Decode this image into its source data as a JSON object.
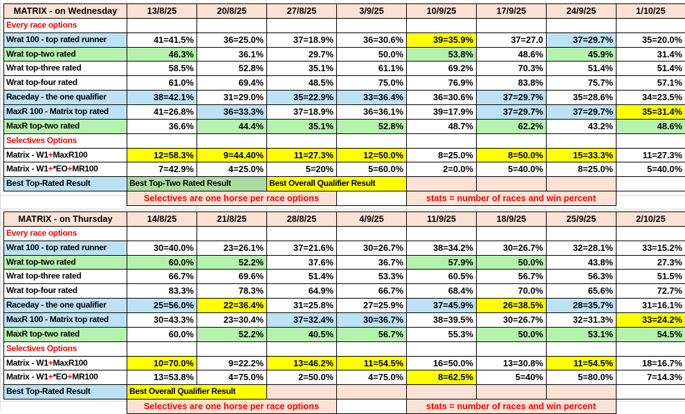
{
  "colors": {
    "peach": "#FBE2D5",
    "yellow": "#FFFF00",
    "green": "#B6F2AE",
    "merged_green": "#ABDCA2",
    "blue": "#BDE2F4",
    "red_text": "#FF0000",
    "border": "#000000",
    "gridline": "#D8D8D8"
  },
  "tables": [
    {
      "title": "MATRIX - on Wednesday",
      "dates": [
        "13/8/25",
        "20/8/25",
        "27/8/25",
        "3/9/25",
        "10/9/25",
        "17/9/25",
        "24/9/25",
        "1/10/25"
      ],
      "rows": [
        {
          "label": "Every race options",
          "label_bg": "w",
          "label_color": "red",
          "values": [
            "",
            "",
            "",
            "",
            "",
            "",
            "",
            ""
          ],
          "bg": [
            "w",
            "w",
            "w",
            "w",
            "w",
            "w",
            "w",
            "w"
          ]
        },
        {
          "label": "Wrat 100 - top rated runner",
          "label_bg": "b",
          "values": [
            "41=41.5%",
            "36=25.0%",
            "37=18.9%",
            "36=30.6%",
            "39=35.9%",
            "37=27.0",
            "37=29.7%",
            "35=20.0%"
          ],
          "bg": [
            "w",
            "w",
            "w",
            "w",
            "y",
            "w",
            "b",
            "w"
          ]
        },
        {
          "label": "Wrat top-two rated",
          "label_bg": "g",
          "values": [
            "46.3%",
            "36.1%",
            "29.7%",
            "50.0%",
            "53.8%",
            "48.6%",
            "45.9%",
            "31.4%"
          ],
          "bg": [
            "g",
            "w",
            "w",
            "w",
            "g",
            "w",
            "g",
            "w"
          ]
        },
        {
          "label": "Wrat top-three rated",
          "label_bg": "w",
          "values": [
            "58.5%",
            "52.8%",
            "35.1%",
            "61.1%",
            "69.2%",
            "70.3%",
            "51.4%",
            "51.4%"
          ],
          "bg": [
            "w",
            "w",
            "w",
            "w",
            "w",
            "w",
            "w",
            "w"
          ]
        },
        {
          "label": "Wrat top-four rated",
          "label_bg": "w",
          "values": [
            "61.0%",
            "69.4%",
            "48.5%",
            "75.0%",
            "76.9%",
            "83.8%",
            "75.7%",
            "57.1%"
          ],
          "bg": [
            "w",
            "w",
            "w",
            "w",
            "w",
            "w",
            "w",
            "w"
          ]
        },
        {
          "label": "Raceday - the one qualifier",
          "label_bg": "b",
          "values": [
            "38=42.1%",
            "31=29.0%",
            "35=22.9%",
            "33=36.4%",
            "36=30.6%",
            "37=29.7%",
            "35=28.6%",
            "34=23.5%"
          ],
          "bg": [
            "b",
            "w",
            "b",
            "b",
            "w",
            "b",
            "w",
            "w"
          ]
        },
        {
          "label": "MaxR 100 - Matrix top rated",
          "label_bg": "b",
          "values": [
            "41=26.8%",
            "36=33.3%",
            "37=18.9%",
            "36=36.1%",
            "39=17.9%",
            "37=29.7%",
            "37=29.7%",
            "35=31.4%"
          ],
          "bg": [
            "w",
            "b",
            "w",
            "w",
            "w",
            "b",
            "b",
            "y"
          ]
        },
        {
          "label": "MaxR top-two rated",
          "label_bg": "g",
          "values": [
            "36.6%",
            "44.4%",
            "35.1%",
            "52.8%",
            "48.7%",
            "62.2%",
            "43.2%",
            "48.6%"
          ],
          "bg": [
            "w",
            "g",
            "g",
            "g",
            "w",
            "g",
            "w",
            "g"
          ]
        },
        {
          "label": "Selectives Options",
          "label_bg": "w",
          "label_color": "red",
          "values": [
            "",
            "",
            "",
            "",
            "",
            "",
            "",
            ""
          ],
          "bg": [
            "w",
            "w",
            "w",
            "w",
            "w",
            "w",
            "w",
            "w"
          ]
        },
        {
          "label": "Matrix - W1+MaxR100",
          "label_bg": "w",
          "red_plus": true,
          "values": [
            "12=58.3%",
            "9=44.40%",
            "11=27.3%",
            "12=50.0%",
            "8=25.0%",
            "8=50.0%",
            "15=33.3%",
            "11=27.3%"
          ],
          "bg": [
            "y",
            "y",
            "y",
            "y",
            "w",
            "y",
            "y",
            "w"
          ]
        },
        {
          "label": "Matrix - W1+*EO+MR100",
          "label_bg": "w",
          "red_plus": true,
          "values": [
            "7=42.9%",
            "4=25.0%",
            "5=20%",
            "5=60.0%",
            "2=0.0%",
            "5=40.0%",
            "8=25.0%",
            "5=40.0%"
          ],
          "bg": [
            "w",
            "w",
            "w",
            "w",
            "w",
            "w",
            "w",
            "w"
          ]
        }
      ],
      "footer": {
        "label": "Best Top-Rated Result",
        "label_bg": "b",
        "segments": [
          {
            "text": "Best Top-Two Rated Result",
            "span": 2,
            "bg": "G"
          },
          {
            "text": "Best Overall Qualifier Result",
            "span": 2,
            "bg": "y"
          },
          {
            "text": "",
            "span": 1,
            "bg": "p"
          },
          {
            "text": "",
            "span": 1,
            "bg": "p"
          },
          {
            "text": "",
            "span": 1,
            "bg": "p"
          },
          {
            "text": "",
            "span": 1,
            "bg": "w"
          }
        ]
      },
      "note_row": {
        "segments": [
          {
            "text": "",
            "span": 1,
            "bg": "none"
          },
          {
            "text": "Selectives are one horse per race options",
            "span": 3,
            "bg": "p",
            "red": true
          },
          {
            "text": "",
            "span": 1,
            "bg": "w"
          },
          {
            "text": "stats = number of races and win percent",
            "span": 3,
            "bg": "p",
            "red": true
          },
          {
            "text": "",
            "span": 1,
            "bg": "none"
          }
        ]
      }
    },
    {
      "title": "MATRIX - on Thursday",
      "dates": [
        "14/8/25",
        "21/8/25",
        "28/8/25",
        "4/9/25",
        "11/9/25",
        "18/9/25",
        "25/9/25",
        "2/10/25"
      ],
      "rows": [
        {
          "label": "Every race options",
          "label_bg": "w",
          "label_color": "red",
          "values": [
            "",
            "",
            "",
            "",
            "",
            "",
            "",
            ""
          ],
          "bg": [
            "w",
            "w",
            "w",
            "w",
            "w",
            "w",
            "w",
            "w"
          ]
        },
        {
          "label": "Wrat 100 - top rated runner",
          "label_bg": "b",
          "values": [
            "30=40.0%",
            "23=26.1%",
            "37=21.6%",
            "30=26.7%",
            "38=34.2%",
            "30=26.7%",
            "32=28.1%",
            "33=15.2%"
          ],
          "bg": [
            "w",
            "w",
            "w",
            "w",
            "w",
            "w",
            "w",
            "w"
          ]
        },
        {
          "label": "Wrat top-two rated",
          "label_bg": "g",
          "values": [
            "60.0%",
            "52.2%",
            "37.6%",
            "36.7%",
            "57.9%",
            "50.0%",
            "43.8%",
            "27.3%"
          ],
          "bg": [
            "g",
            "g",
            "w",
            "w",
            "g",
            "g",
            "w",
            "w"
          ]
        },
        {
          "label": "Wrat top-three rated",
          "label_bg": "w",
          "values": [
            "66.7%",
            "69.6%",
            "51.4%",
            "53.3%",
            "60.5%",
            "56.7%",
            "56.3%",
            "51.5%"
          ],
          "bg": [
            "w",
            "w",
            "w",
            "w",
            "w",
            "w",
            "w",
            "w"
          ]
        },
        {
          "label": "Wrat top-four rated",
          "label_bg": "w",
          "values": [
            "83.3%",
            "78.3%",
            "64.9%",
            "66.7%",
            "68.4%",
            "70.0%",
            "65.6%",
            "72.7%"
          ],
          "bg": [
            "w",
            "w",
            "w",
            "w",
            "w",
            "w",
            "w",
            "w"
          ]
        },
        {
          "label": "Raceday - the one qualifier",
          "label_bg": "b",
          "values": [
            "25=56.0%",
            "22=36.4%",
            "31=25.8%",
            "27=25.9%",
            "37=45.9%",
            "26=38.5%",
            "28=35.7%",
            "31=16.1%"
          ],
          "bg": [
            "b",
            "y",
            "w",
            "w",
            "b",
            "y",
            "b",
            "w"
          ]
        },
        {
          "label": "MaxR 100 - Matrix top rated",
          "label_bg": "b",
          "values": [
            "30=43.3%",
            "23=30.4%",
            "37=32.4%",
            "30=36.7%",
            "38=39.5%",
            "30=26.7%",
            "32=31.3%",
            "33=24.2%"
          ],
          "bg": [
            "w",
            "w",
            "b",
            "b",
            "w",
            "w",
            "w",
            "y"
          ]
        },
        {
          "label": "MaxR top-two rated",
          "label_bg": "g",
          "values": [
            "60.0%",
            "52.2%",
            "40.5%",
            "56.7%",
            "55.3%",
            "50.0%",
            "53.1%",
            "54.5%"
          ],
          "bg": [
            "w",
            "g",
            "g",
            "g",
            "w",
            "g",
            "g",
            "g"
          ]
        },
        {
          "label": "Selectives Options",
          "label_bg": "w",
          "label_color": "red",
          "values": [
            "",
            "",
            "",
            "",
            "",
            "",
            "",
            ""
          ],
          "bg": [
            "w",
            "w",
            "w",
            "w",
            "w",
            "w",
            "w",
            "w"
          ]
        },
        {
          "label": "Matrix - W1+MaxR100",
          "label_bg": "w",
          "red_plus": true,
          "values": [
            "10=70.0%",
            "9=22.2%",
            "13=46.2%",
            "11=54.5%",
            "16=50.0%",
            "13=30.8%",
            "11=54.5%",
            "18=16.7%"
          ],
          "bg": [
            "y",
            "w",
            "y",
            "y",
            "w",
            "w",
            "y",
            "w"
          ]
        },
        {
          "label": "Matrix - W1+*EO+MR100",
          "label_bg": "w",
          "red_plus": true,
          "values": [
            "13=53.8%",
            "4=75.0%",
            "2=50.0%",
            "4=75.0%",
            "8=62.5%",
            "5=40%",
            "5=80.0%",
            "7=14.3%"
          ],
          "bg": [
            "w",
            "w",
            "w",
            "w",
            "y",
            "w",
            "w",
            "w"
          ]
        }
      ],
      "footer": {
        "label": "Best Top-Rated Result",
        "label_bg": "b",
        "segments": [
          {
            "text": "Best Overall Qualifier Result",
            "span": 2,
            "bg": "y"
          },
          {
            "text": "",
            "span": 1,
            "bg": "p"
          },
          {
            "text": "",
            "span": 1,
            "bg": "p"
          },
          {
            "text": "",
            "span": 1,
            "bg": "p"
          },
          {
            "text": "",
            "span": 1,
            "bg": "p"
          },
          {
            "text": "",
            "span": 1,
            "bg": "p"
          },
          {
            "text": "",
            "span": 1,
            "bg": "w"
          }
        ]
      },
      "note_row": {
        "segments": [
          {
            "text": "",
            "span": 1,
            "bg": "none"
          },
          {
            "text": "Selectives are one horse per race options",
            "span": 3,
            "bg": "p",
            "red": true
          },
          {
            "text": "",
            "span": 1,
            "bg": "w"
          },
          {
            "text": "stats = number of races and win percent",
            "span": 3,
            "bg": "p",
            "red": true
          },
          {
            "text": "",
            "span": 1,
            "bg": "none"
          }
        ]
      }
    }
  ]
}
